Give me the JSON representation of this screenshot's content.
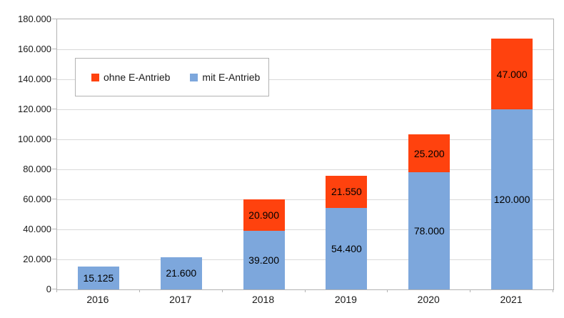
{
  "chart_data": {
    "type": "bar",
    "stacked": true,
    "title": "",
    "xlabel": "",
    "ylabel": "",
    "categories": [
      "2016",
      "2017",
      "2018",
      "2019",
      "2020",
      "2021"
    ],
    "series": [
      {
        "name": "mit E-Antrieb",
        "color": "#7da7dc",
        "values": [
          15125,
          21600,
          39200,
          54400,
          78000,
          120000
        ],
        "data_labels": [
          "15.125",
          "21.600",
          "39.200",
          "54.400",
          "78.000",
          "120.000"
        ]
      },
      {
        "name": "ohne E-Antrieb",
        "color": "#ff420e",
        "values": [
          0,
          0,
          20900,
          21550,
          25200,
          47000
        ],
        "data_labels": [
          "",
          "",
          "20.900",
          "21.550",
          "25.200",
          "47.000"
        ]
      }
    ],
    "totals": [
      15125,
      21600,
      60100,
      75950,
      103200,
      167000
    ],
    "ylim": [
      0,
      180000
    ],
    "ytick_interval": 20000,
    "ytick_labels": [
      "0",
      "20.000",
      "40.000",
      "60.000",
      "80.000",
      "100.000",
      "120.000",
      "140.000",
      "160.000",
      "180.000"
    ],
    "grid": true,
    "legend": {
      "position": "inside-top-left",
      "entries": [
        {
          "label": "ohne E-Antrieb",
          "color": "#ff420e"
        },
        {
          "label": "mit E-Antrieb",
          "color": "#7da7dc"
        }
      ]
    }
  },
  "colors": {
    "background": "#ffffff",
    "gridline": "#d9d9d9",
    "axis": "#b3b3b3",
    "text": "#1a1a1a",
    "data_label": "#000000",
    "series_mit_e_antrieb": "#7da7dc",
    "series_ohne_e_antrieb": "#ff420e"
  }
}
